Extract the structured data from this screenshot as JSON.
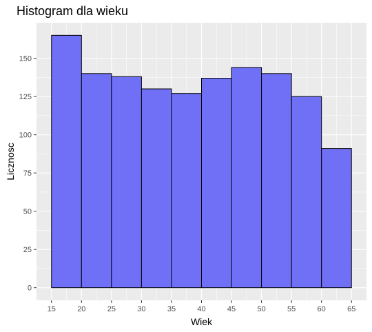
{
  "chart_data": {
    "type": "bar",
    "title": "Histogram dla wieku",
    "xlabel": "Wiek",
    "ylabel": "Licznosc",
    "bins": [
      {
        "from": 15,
        "to": 20,
        "count": 165
      },
      {
        "from": 20,
        "to": 25,
        "count": 140
      },
      {
        "from": 25,
        "to": 30,
        "count": 138
      },
      {
        "from": 30,
        "to": 35,
        "count": 130
      },
      {
        "from": 35,
        "to": 40,
        "count": 127
      },
      {
        "from": 40,
        "to": 45,
        "count": 137
      },
      {
        "from": 45,
        "to": 50,
        "count": 144
      },
      {
        "from": 50,
        "to": 55,
        "count": 140
      },
      {
        "from": 55,
        "to": 60,
        "count": 125
      },
      {
        "from": 60,
        "to": 65,
        "count": 91
      }
    ],
    "xticks": [
      15,
      20,
      25,
      30,
      35,
      40,
      45,
      50,
      55,
      60,
      65
    ],
    "yticks": [
      0,
      25,
      50,
      75,
      100,
      125,
      150
    ],
    "xlim": [
      12.5,
      67.5
    ],
    "ylim": [
      -8.25,
      173.25
    ],
    "grid": true,
    "colors": {
      "panel_background": "#ebebeb",
      "grid_major": "#ffffff",
      "bar_fill": "#7070f7",
      "bar_stroke": "#000000"
    }
  }
}
